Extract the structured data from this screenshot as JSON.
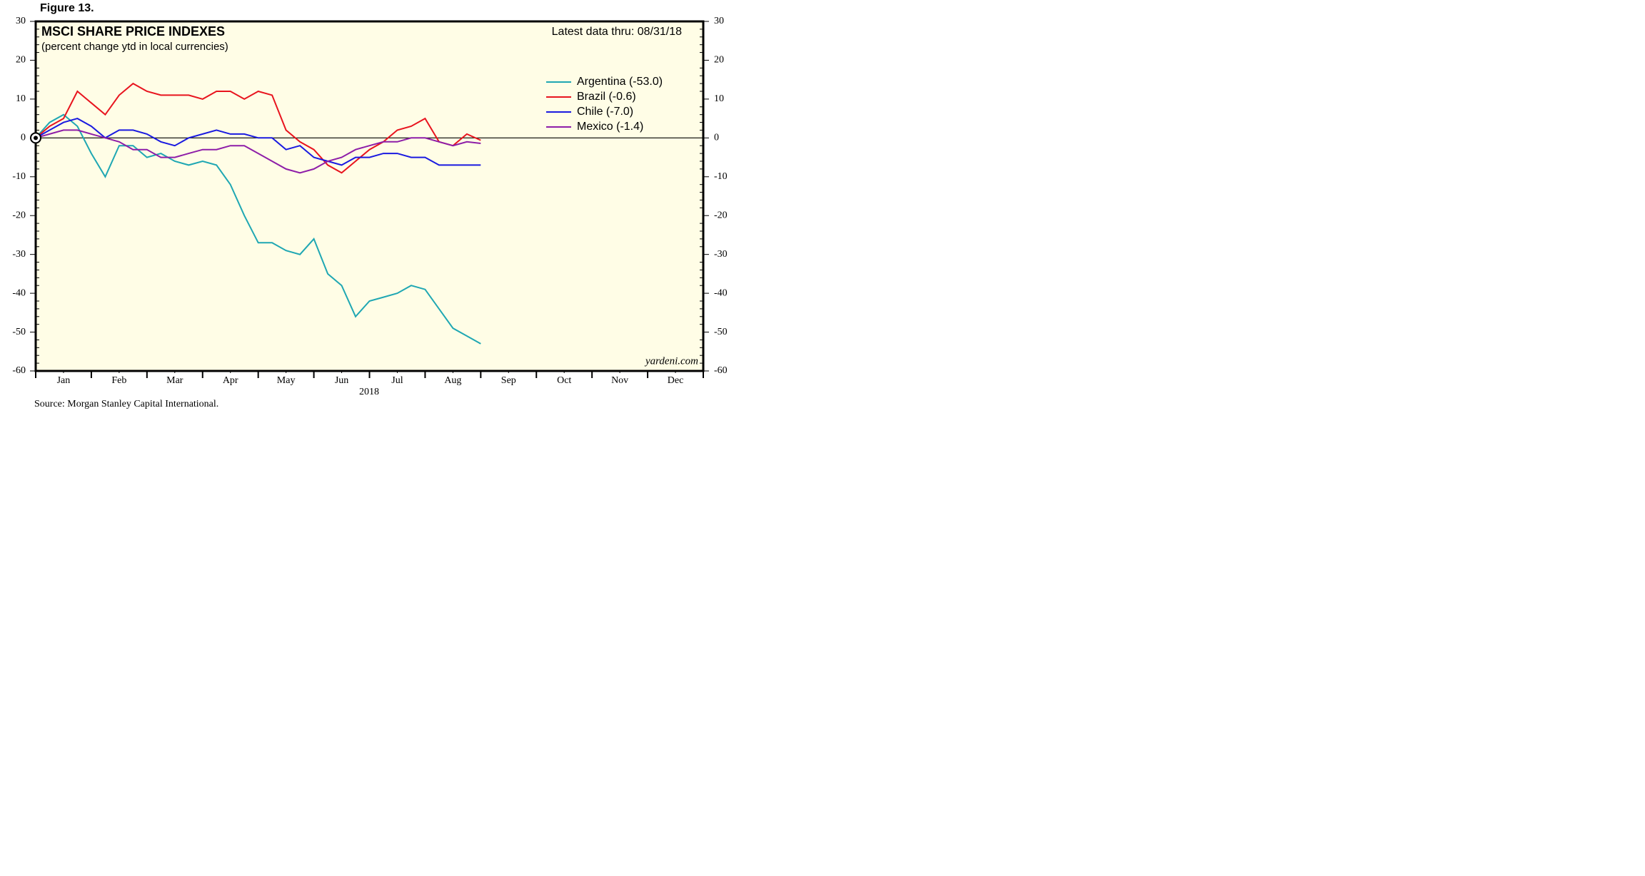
{
  "figure_label": "Figure 13.",
  "chart_data": {
    "type": "line",
    "title": "MSCI SHARE PRICE INDEXES",
    "subtitle": "(percent change ytd in local currencies)",
    "annotation": "Latest data thru: 08/31/18",
    "watermark": "yardeni.com",
    "x_axis_label": "2018",
    "source": "Source: Morgan Stanley Capital International.",
    "x": [
      0,
      0.25,
      0.5,
      0.75,
      1,
      1.25,
      1.5,
      1.75,
      2,
      2.25,
      2.5,
      2.75,
      3,
      3.25,
      3.5,
      3.75,
      4,
      4.25,
      4.5,
      4.75,
      5,
      5.25,
      5.5,
      5.75,
      6,
      6.25,
      6.5,
      6.75,
      7,
      7.25,
      7.5,
      7.75,
      8
    ],
    "xlim": [
      0,
      12
    ],
    "xticks": [
      {
        "value": 0.5,
        "label": "Jan"
      },
      {
        "value": 1.5,
        "label": "Feb"
      },
      {
        "value": 2.5,
        "label": "Mar"
      },
      {
        "value": 3.5,
        "label": "Apr"
      },
      {
        "value": 4.5,
        "label": "May"
      },
      {
        "value": 5.5,
        "label": "Jun"
      },
      {
        "value": 6.5,
        "label": "Jul"
      },
      {
        "value": 7.5,
        "label": "Aug"
      },
      {
        "value": 8.5,
        "label": "Sep"
      },
      {
        "value": 9.5,
        "label": "Oct"
      },
      {
        "value": 10.5,
        "label": "Nov"
      },
      {
        "value": 11.5,
        "label": "Dec"
      }
    ],
    "ylim": [
      -60,
      30
    ],
    "yticks": [
      -60,
      -50,
      -40,
      -30,
      -20,
      -10,
      0,
      10,
      20,
      30
    ],
    "series": [
      {
        "name": "Argentina (-53.0)",
        "color": "#1fa7b3",
        "values": [
          0,
          4,
          6,
          3,
          -4,
          -10,
          -2,
          -2,
          -5,
          -4,
          -6,
          -7,
          -6,
          -7,
          -12,
          -20,
          -27,
          -27,
          -29,
          -30,
          -26,
          -35,
          -38,
          -46,
          -42,
          -41,
          -40,
          -38,
          -39,
          -44,
          -49,
          -51,
          -53
        ]
      },
      {
        "name": "Brazil (-0.6)",
        "color": "#e8141e",
        "values": [
          0,
          3,
          5,
          12,
          9,
          6,
          11,
          14,
          12,
          11,
          11,
          11,
          10,
          12,
          12,
          10,
          12,
          11,
          2,
          -1,
          -3,
          -7,
          -9,
          -6,
          -3,
          -1,
          2,
          3,
          5,
          -1,
          -2,
          1,
          -0.6
        ]
      },
      {
        "name": "Chile (-7.0)",
        "color": "#1a1ae0",
        "values": [
          0,
          2,
          4,
          5,
          3,
          0,
          2,
          2,
          1,
          -1,
          -2,
          0,
          1,
          2,
          1,
          1,
          0,
          0,
          -3,
          -2,
          -5,
          -6,
          -7,
          -5,
          -5,
          -4,
          -4,
          -5,
          -5,
          -7,
          -7,
          -7,
          -7
        ]
      },
      {
        "name": "Mexico (-1.4)",
        "color": "#8e1ea8",
        "values": [
          0,
          1,
          2,
          2,
          1,
          0,
          -1,
          -3,
          -3,
          -5,
          -5,
          -4,
          -3,
          -3,
          -2,
          -2,
          -4,
          -6,
          -8,
          -9,
          -8,
          -6,
          -5,
          -3,
          -2,
          -1,
          -1,
          0,
          0,
          -1,
          -2,
          -1,
          -1.4
        ]
      }
    ]
  }
}
